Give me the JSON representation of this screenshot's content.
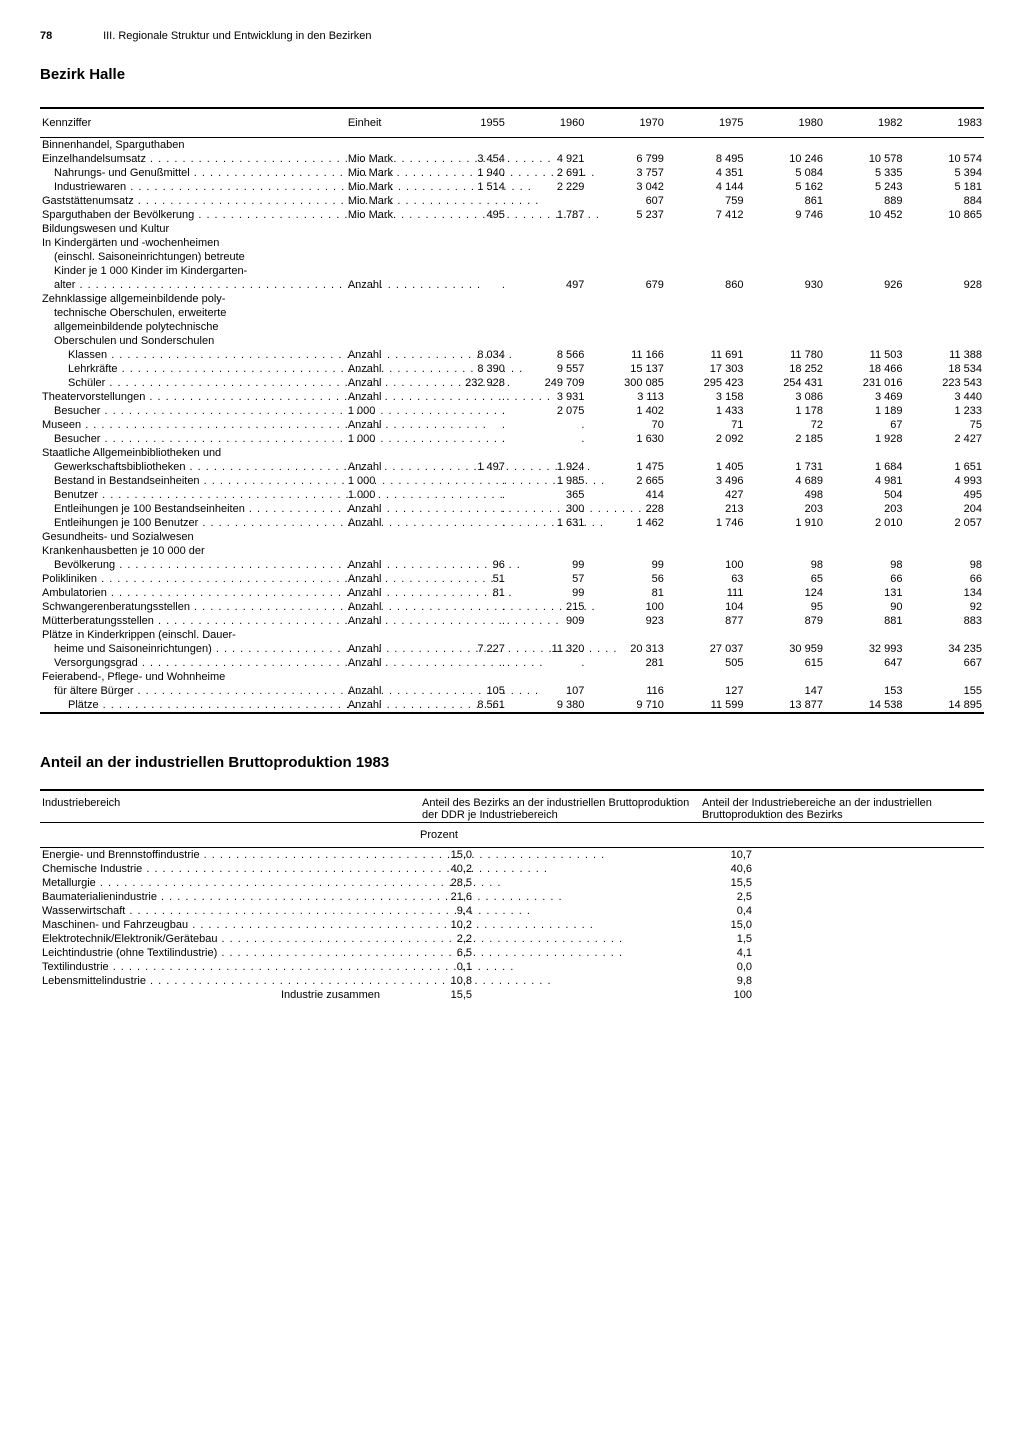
{
  "header": {
    "page_number": "78",
    "running_title": "III. Regionale Struktur und Entwicklung in den Bezirken"
  },
  "title": "Bezirk Halle",
  "table1": {
    "head": {
      "kennziffer": "Kennziffer",
      "einheit": "Einheit"
    },
    "years": [
      "1955",
      "1960",
      "1970",
      "1975",
      "1980",
      "1982",
      "1983"
    ],
    "sections": [
      {
        "title": "Binnenhandel, Sparguthaben",
        "rows": [
          {
            "label": "Einzelhandelsumsatz",
            "unit": "Mio Mark",
            "v": [
              "3 454",
              "4 921",
              "6 799",
              "8 495",
              "10 246",
              "10 578",
              "10 574"
            ],
            "indent": 0,
            "dots": true
          },
          {
            "label": "Nahrungs- und Genußmittel",
            "unit": "Mio Mark",
            "v": [
              "1 940",
              "2 691",
              "3 757",
              "4 351",
              "5 084",
              "5 335",
              "5 394"
            ],
            "indent": 1,
            "dots": true
          },
          {
            "label": "Industriewaren",
            "unit": "Mio Mark",
            "v": [
              "1 514",
              "2 229",
              "3 042",
              "4 144",
              "5 162",
              "5 243",
              "5 181"
            ],
            "indent": 1,
            "dots": true
          },
          {
            "label": "Gaststättenumsatz",
            "unit": "Mio Mark",
            "v": [
              "",
              "",
              "607",
              "759",
              "861",
              "889",
              "884"
            ],
            "indent": 0,
            "dots": true
          },
          {
            "label": "Sparguthaben der Bevölkerung",
            "unit": "Mio Mark",
            "v": [
              "495",
              "1 787",
              "5 237",
              "7 412",
              "9 746",
              "10 452",
              "10 865"
            ],
            "indent": 0,
            "dots": true
          }
        ]
      },
      {
        "title": "Bildungswesen und Kultur",
        "rows": [
          {
            "label": "In Kindergärten und -wochenheimen",
            "unit": "",
            "v": [
              "",
              "",
              "",
              "",
              "",
              "",
              ""
            ],
            "indent": 0,
            "dots": false
          },
          {
            "label": "(einschl. Saisoneinrichtungen) betreute",
            "unit": "",
            "v": [
              "",
              "",
              "",
              "",
              "",
              "",
              ""
            ],
            "indent": 1,
            "dots": false,
            "nodots": true
          },
          {
            "label": "Kinder je 1 000 Kinder im Kindergarten-",
            "unit": "",
            "v": [
              "",
              "",
              "",
              "",
              "",
              "",
              ""
            ],
            "indent": 1,
            "dots": false,
            "nodots": true
          },
          {
            "label": "alter",
            "unit": "Anzahl",
            "v": [
              ".",
              "497",
              "679",
              "860",
              "930",
              "926",
              "928"
            ],
            "indent": 1,
            "dots": true
          },
          {
            "label": "Zehnklassige allgemeinbildende poly-",
            "unit": "",
            "v": [
              "",
              "",
              "",
              "",
              "",
              "",
              ""
            ],
            "indent": 0,
            "dots": false,
            "nodots": true
          },
          {
            "label": "technische Oberschulen, erweiterte",
            "unit": "",
            "v": [
              "",
              "",
              "",
              "",
              "",
              "",
              ""
            ],
            "indent": 1,
            "dots": false,
            "nodots": true
          },
          {
            "label": "allgemeinbildende polytechnische",
            "unit": "",
            "v": [
              "",
              "",
              "",
              "",
              "",
              "",
              ""
            ],
            "indent": 1,
            "dots": false,
            "nodots": true
          },
          {
            "label": "Oberschulen und Sonderschulen",
            "unit": "",
            "v": [
              "",
              "",
              "",
              "",
              "",
              "",
              ""
            ],
            "indent": 1,
            "dots": false,
            "nodots": true
          },
          {
            "label": "Klassen",
            "unit": "Anzahl",
            "v": [
              "8 034",
              "8 566",
              "11 166",
              "11 691",
              "11 780",
              "11 503",
              "11 388"
            ],
            "indent": 2,
            "dots": true
          },
          {
            "label": "Lehrkräfte",
            "unit": "Anzahl",
            "v": [
              "8 390",
              "9 557",
              "15 137",
              "17 303",
              "18 252",
              "18 466",
              "18 534"
            ],
            "indent": 2,
            "dots": true
          },
          {
            "label": "Schüler",
            "unit": "Anzahl",
            "v": [
              "232 928",
              "249 709",
              "300 085",
              "295 423",
              "254 431",
              "231 016",
              "223 543"
            ],
            "indent": 2,
            "dots": true
          },
          {
            "label": "Theatervorstellungen",
            "unit": "Anzahl",
            "v": [
              ".",
              "3 931",
              "3 113",
              "3 158",
              "3 086",
              "3 469",
              "3 440"
            ],
            "indent": 0,
            "dots": true
          },
          {
            "label": "Besucher",
            "unit": "1 000",
            "v": [
              ".",
              "2 075",
              "1 402",
              "1 433",
              "1 178",
              "1 189",
              "1 233"
            ],
            "indent": 1,
            "dots": true
          },
          {
            "label": "Museen",
            "unit": "Anzahl",
            "v": [
              ".",
              ".",
              "70",
              "71",
              "72",
              "67",
              "75"
            ],
            "indent": 0,
            "dots": true
          },
          {
            "label": "Besucher",
            "unit": "1 000",
            "v": [
              ".",
              ".",
              "1 630",
              "2 092",
              "2 185",
              "1 928",
              "2 427"
            ],
            "indent": 1,
            "dots": true
          },
          {
            "label": "Staatliche Allgemeinbibliotheken und",
            "unit": "",
            "v": [
              "",
              "",
              "",
              "",
              "",
              "",
              ""
            ],
            "indent": 0,
            "dots": false,
            "nodots": true
          },
          {
            "label": "Gewerkschaftsbibliotheken",
            "unit": "Anzahl",
            "v": [
              "1 497",
              "1 924",
              "1 475",
              "1 405",
              "1 731",
              "1 684",
              "1 651"
            ],
            "indent": 1,
            "dots": true
          },
          {
            "label": "Bestand in Bestandseinheiten",
            "unit": "1 000",
            "v": [
              ".",
              "1 985",
              "2 665",
              "3 496",
              "4 689",
              "4 981",
              "4 993"
            ],
            "indent": 1,
            "dots": true
          },
          {
            "label": "Benutzer",
            "unit": "1 000",
            "v": [
              ".",
              "365",
              "414",
              "427",
              "498",
              "504",
              "495"
            ],
            "indent": 1,
            "dots": true
          },
          {
            "label": "Entleihungen je 100 Bestandseinheiten",
            "unit": "Anzahl",
            "v": [
              ".",
              "300",
              "228",
              "213",
              "203",
              "203",
              "204"
            ],
            "indent": 1,
            "dots": true
          },
          {
            "label": "Entleihungen je 100 Benutzer",
            "unit": "Anzahl",
            "v": [
              ".",
              "1 631",
              "1 462",
              "1 746",
              "1 910",
              "2 010",
              "2 057"
            ],
            "indent": 1,
            "dots": true
          }
        ]
      },
      {
        "title": "Gesundheits- und Sozialwesen",
        "rows": [
          {
            "label": "Krankenhausbetten je 10 000 der",
            "unit": "",
            "v": [
              "",
              "",
              "",
              "",
              "",
              "",
              ""
            ],
            "indent": 0,
            "dots": false,
            "nodots": true
          },
          {
            "label": "Bevölkerung",
            "unit": "Anzahl",
            "v": [
              "96",
              "99",
              "99",
              "100",
              "98",
              "98",
              "98"
            ],
            "indent": 1,
            "dots": true
          },
          {
            "label": "Polikliniken",
            "unit": "Anzahl",
            "v": [
              "51",
              "57",
              "56",
              "63",
              "65",
              "66",
              "66"
            ],
            "indent": 0,
            "dots": true
          },
          {
            "label": "Ambulatorien",
            "unit": "Anzahl",
            "v": [
              "81",
              "99",
              "81",
              "111",
              "124",
              "131",
              "134"
            ],
            "indent": 0,
            "dots": true
          },
          {
            "label": "Schwangerenberatungsstellen",
            "unit": "Anzahl",
            "v": [
              ".",
              "215",
              "100",
              "104",
              "95",
              "90",
              "92"
            ],
            "indent": 0,
            "dots": true
          },
          {
            "label": "Mütterberatungsstellen",
            "unit": "Anzahl",
            "v": [
              ".",
              "909",
              "923",
              "877",
              "879",
              "881",
              "883"
            ],
            "indent": 0,
            "dots": true
          },
          {
            "label": "Plätze in Kinderkrippen (einschl. Dauer-",
            "unit": "",
            "v": [
              "",
              "",
              "",
              "",
              "",
              "",
              ""
            ],
            "indent": 0,
            "dots": false,
            "nodots": true
          },
          {
            "label": "heime und Saisoneinrichtungen)",
            "unit": "Anzahl",
            "v": [
              "7 227",
              "11 320",
              "20 313",
              "27 037",
              "30 959",
              "32 993",
              "34 235"
            ],
            "indent": 1,
            "dots": true
          },
          {
            "label": "Versorgungsgrad",
            "unit": "Anzahl",
            "v": [
              ".",
              ".",
              "281",
              "505",
              "615",
              "647",
              "667"
            ],
            "indent": 1,
            "dots": true
          },
          {
            "label": "Feierabend-, Pflege- und Wohnheime",
            "unit": "",
            "v": [
              "",
              "",
              "",
              "",
              "",
              "",
              ""
            ],
            "indent": 0,
            "dots": false,
            "nodots": true
          },
          {
            "label": "für ältere Bürger",
            "unit": "Anzahl",
            "v": [
              "105",
              "107",
              "116",
              "127",
              "147",
              "153",
              "155"
            ],
            "indent": 1,
            "dots": true
          },
          {
            "label": "Plätze",
            "unit": "Anzahl",
            "v": [
              "8 561",
              "9 380",
              "9 710",
              "11 599",
              "13 877",
              "14 538",
              "14 895"
            ],
            "indent": 2,
            "dots": true
          }
        ]
      }
    ]
  },
  "table2": {
    "title": "Anteil an der industriellen Bruttoproduktion 1983",
    "head": {
      "col1": "Industriebereich",
      "col2": "Anteil des Bezirks an der industriellen Bruttoproduktion der DDR je Industriebereich",
      "col3": "Anteil der Industriebereiche an der industriellen Bruttoproduktion des Bezirks",
      "unit": "Prozent"
    },
    "rows": [
      {
        "label": "Energie- und Brennstoffindustrie",
        "a": "15,0",
        "b": "10,7"
      },
      {
        "label": "Chemische Industrie",
        "a": "40,2",
        "b": "40,6"
      },
      {
        "label": "Metallurgie",
        "a": "28,5",
        "b": "15,5"
      },
      {
        "label": "Baumaterialienindustrie",
        "a": "21,6",
        "b": "2,5"
      },
      {
        "label": "Wasserwirtschaft",
        "a": "9,4",
        "b": "0,4"
      },
      {
        "label": "Maschinen- und Fahrzeugbau",
        "a": "10,2",
        "b": "15,0"
      },
      {
        "label": "Elektrotechnik/Elektronik/Gerätebau",
        "a": "2,2",
        "b": "1,5"
      },
      {
        "label": "Leichtindustrie (ohne Textilindustrie)",
        "a": "6,5",
        "b": "4,1"
      },
      {
        "label": "Textilindustrie",
        "a": "0,1",
        "b": "0,0"
      },
      {
        "label": "Lebensmittelindustrie",
        "a": "10,8",
        "b": "9,8"
      }
    ],
    "total": {
      "label": "Industrie zusammen",
      "a": "15,5",
      "b": "100"
    }
  }
}
